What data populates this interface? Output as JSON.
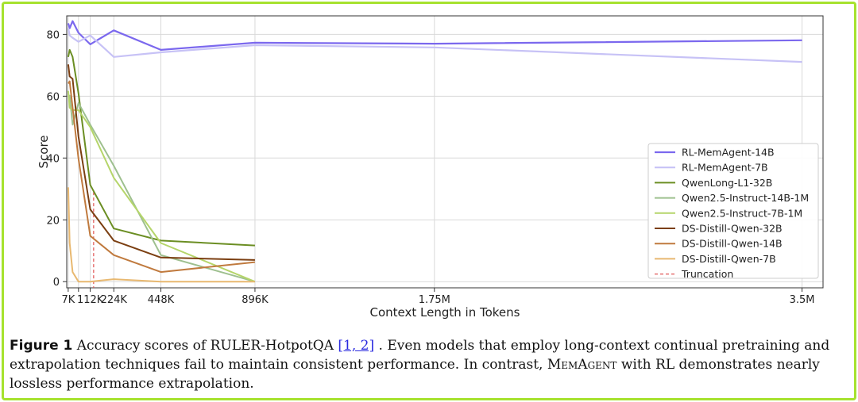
{
  "chart_data": {
    "type": "line",
    "xlabel": "Context Length in Tokens",
    "ylabel": "Score",
    "ylim": [
      -2,
      86
    ],
    "xlim_tokens_k": [
      0,
      3600
    ],
    "yticks": [
      0,
      20,
      40,
      60,
      80
    ],
    "xticks": [
      {
        "pos_k": 7,
        "label": "7K"
      },
      {
        "pos_k": 56,
        "label": ""
      },
      {
        "pos_k": 112,
        "label": "112K"
      },
      {
        "pos_k": 224,
        "label": "224K"
      },
      {
        "pos_k": 448,
        "label": "448K"
      },
      {
        "pos_k": 896,
        "label": "896K"
      },
      {
        "pos_k": 1750,
        "label": "1.75M"
      },
      {
        "pos_k": 3500,
        "label": "3.5M"
      }
    ],
    "grid": true,
    "legend_position": "right",
    "x_tokens_k": [
      7,
      14,
      28,
      56,
      112,
      224,
      448,
      896,
      1750,
      3500
    ],
    "series": [
      {
        "name": "RL-MemAgent-14B",
        "color": "#7b68ee",
        "width": 2.2,
        "x": [
          7,
          14,
          28,
          56,
          112,
          224,
          448,
          896,
          1750,
          3500
        ],
        "y": [
          83.6,
          82.0,
          84.3,
          80.5,
          76.8,
          81.3,
          75.0,
          77.3,
          77.0,
          78.1
        ]
      },
      {
        "name": "RL-MemAgent-7B",
        "color": "#c7c2f6",
        "width": 2.2,
        "x": [
          7,
          14,
          28,
          56,
          112,
          224,
          448,
          896,
          1750,
          3500
        ],
        "y": [
          82.0,
          79.7,
          78.9,
          77.6,
          79.7,
          72.7,
          74.2,
          76.5,
          75.8,
          71.1
        ]
      },
      {
        "name": "QwenLong-L1-32B",
        "color": "#6b8e23",
        "width": 2.0,
        "x": [
          7,
          14,
          28,
          56,
          112,
          224,
          448,
          896
        ],
        "y": [
          72.7,
          75.0,
          72.7,
          60.9,
          31.3,
          17.2,
          13.3,
          11.7
        ]
      },
      {
        "name": "Qwen2.5-Instruct-14B-1M",
        "color": "#9ec08f",
        "width": 2.0,
        "x": [
          7,
          14,
          28,
          56,
          112,
          224,
          448,
          896
        ],
        "y": [
          60.2,
          60.2,
          50.8,
          57.8,
          50.8,
          37.5,
          8.6,
          0.0
        ]
      },
      {
        "name": "Qwen2.5-Instruct-7B-1M",
        "color": "#b5d56a",
        "width": 2.0,
        "x": [
          7,
          14,
          28,
          56,
          112,
          224,
          448,
          896
        ],
        "y": [
          61.7,
          56.3,
          55.5,
          55.5,
          50.0,
          33.6,
          12.5,
          0.0
        ]
      },
      {
        "name": "DS-Distill-Qwen-32B",
        "color": "#7b3f12",
        "width": 2.0,
        "x": [
          7,
          14,
          28,
          56,
          112,
          224,
          448,
          896
        ],
        "y": [
          70.3,
          66.4,
          65.6,
          46.9,
          23.4,
          13.3,
          7.8,
          7.0
        ]
      },
      {
        "name": "DS-Distill-Qwen-14B",
        "color": "#c07a3e",
        "width": 2.0,
        "x": [
          7,
          14,
          28,
          56,
          112,
          224,
          448,
          896
        ],
        "y": [
          64.1,
          64.8,
          56.3,
          39.8,
          14.8,
          8.6,
          3.1,
          6.3
        ]
      },
      {
        "name": "DS-Distill-Qwen-7B",
        "color": "#e8b870",
        "width": 2.0,
        "x": [
          7,
          14,
          28,
          56,
          112,
          224,
          448,
          896
        ],
        "y": [
          30.5,
          12.5,
          3.1,
          0.0,
          0.0,
          0.8,
          0.0,
          0.0
        ]
      }
    ],
    "truncation": {
      "name": "Truncation",
      "color": "#e05555",
      "x_k": 128,
      "y_top": 29
    }
  },
  "caption": {
    "label": "Figure 1",
    "text_before_ref": "Accuracy scores of RULER-HotpotQA ",
    "ref": "[1, 2]",
    "text_after_ref": " . Even models that employ long-context continual pretraining and extrapolation techniques fail to maintain consistent performance. In contrast, ",
    "memagent": "MemAgent",
    "text_end": " with RL demonstrates nearly lossless performance extrapolation."
  },
  "colors": {
    "frame": "#a6e22e",
    "grid": "#d9d9d9",
    "axis": "#333333"
  }
}
